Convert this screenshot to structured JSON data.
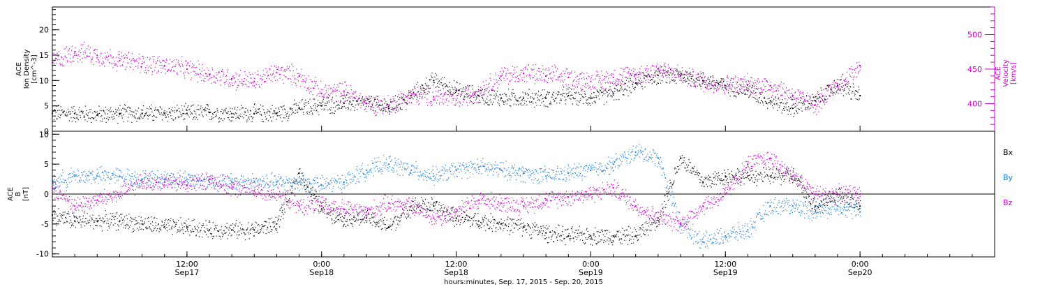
{
  "chart_data": [
    {
      "type": "scatter",
      "x_range": [
        0,
        84
      ],
      "x_tick_hours": [
        12,
        24,
        36,
        48,
        60,
        72
      ],
      "x_tick_labels": [
        {
          "time": "12:00",
          "date": "Sep17"
        },
        {
          "time": "0:00",
          "date": "Sep18"
        },
        {
          "time": "12:00",
          "date": "Sep18"
        },
        {
          "time": "0:00",
          "date": "Sep19"
        },
        {
          "time": "12:00",
          "date": "Sep19"
        },
        {
          "time": "0:00",
          "date": "Sep20"
        }
      ],
      "xlabel": "hours:minutes, Sep. 17, 2015 - Sep. 20, 2015",
      "left_axis": {
        "label_lines": [
          "ACE",
          "Ion Density",
          "[cm^-3]"
        ],
        "range": [
          0,
          24.5
        ],
        "ticks": [
          0,
          5,
          10,
          15,
          20
        ],
        "color": "#000000"
      },
      "right_axis": {
        "label_lines": [
          "ACE",
          "Velocity",
          "[km/s]"
        ],
        "range": [
          360,
          540
        ],
        "ticks": [
          400,
          450,
          500
        ],
        "color": "#cc00cc"
      },
      "series": [
        {
          "axis": "left",
          "color": "#000000",
          "x": [
            0,
            2,
            4,
            6,
            8,
            10,
            12,
            14,
            16,
            18,
            20,
            22,
            24,
            26,
            28,
            30,
            32,
            34,
            36,
            38,
            40,
            42,
            44,
            46,
            48,
            50,
            52,
            54,
            56,
            58,
            60,
            62,
            64,
            66,
            68,
            70,
            72
          ],
          "y": [
            3.5,
            3.5,
            3.2,
            3.5,
            3.5,
            3.5,
            3.5,
            3.7,
            3.5,
            3.5,
            3.5,
            4.5,
            5,
            5.5,
            5.5,
            4.5,
            7,
            10,
            8,
            7,
            6.5,
            6.5,
            6.5,
            7,
            6.5,
            7.5,
            9.5,
            11,
            11,
            10,
            9,
            8,
            6,
            4.5,
            6,
            9,
            7
          ]
        },
        {
          "axis": "right",
          "color": "#cc00cc",
          "x": [
            0,
            2,
            4,
            6,
            8,
            10,
            12,
            14,
            16,
            18,
            20,
            22,
            24,
            26,
            28,
            30,
            32,
            34,
            36,
            38,
            40,
            42,
            44,
            46,
            48,
            50,
            52,
            54,
            56,
            58,
            60,
            62,
            64,
            66,
            68,
            70,
            72
          ],
          "y": [
            460,
            475,
            470,
            462,
            458,
            455,
            450,
            442,
            436,
            432,
            445,
            440,
            415,
            418,
            400,
            398,
            412,
            410,
            405,
            418,
            440,
            444,
            440,
            438,
            432,
            438,
            442,
            450,
            440,
            432,
            426,
            428,
            426,
            412,
            398,
            425,
            455
          ]
        }
      ]
    },
    {
      "type": "scatter",
      "x_range": [
        0,
        84
      ],
      "x_tick_hours": [
        12,
        24,
        36,
        48,
        60,
        72
      ],
      "left_axis": {
        "label_lines": [
          "ACE",
          "B",
          "[nT]"
        ],
        "range": [
          -10.5,
          10.5
        ],
        "ticks": [
          -10,
          -5,
          0,
          5,
          10
        ]
      },
      "zero_line": true,
      "series": [
        {
          "name": "Bx",
          "color": "#000000",
          "x": [
            0,
            2,
            4,
            6,
            8,
            10,
            12,
            14,
            16,
            18,
            20,
            22,
            24,
            26,
            28,
            30,
            32,
            34,
            36,
            38,
            40,
            42,
            44,
            46,
            48,
            50,
            52,
            54,
            56,
            58,
            60,
            62,
            64,
            66,
            68,
            70,
            72
          ],
          "y": [
            -3.5,
            -4.5,
            -4.5,
            -4.5,
            -5,
            -5.5,
            -5.5,
            -6,
            -6,
            -6,
            -5,
            3.5,
            -2.5,
            -4,
            -4,
            -5.5,
            -2,
            -2,
            -4,
            -4.5,
            -5,
            -5.5,
            -6.5,
            -7,
            -7,
            -7,
            -7,
            -4,
            6,
            2,
            3,
            3,
            3,
            3,
            -2,
            0,
            -2
          ]
        },
        {
          "name": "By",
          "color": "#1a7ee0",
          "x": [
            0,
            2,
            4,
            6,
            8,
            10,
            12,
            14,
            16,
            18,
            20,
            22,
            24,
            26,
            28,
            30,
            32,
            34,
            36,
            38,
            40,
            42,
            44,
            46,
            48,
            50,
            52,
            54,
            56,
            58,
            60,
            62,
            64,
            66,
            68,
            70,
            72
          ],
          "y": [
            2,
            3,
            3,
            3,
            2.5,
            2.5,
            2.5,
            2,
            2,
            2,
            2,
            2,
            1.5,
            2,
            4,
            5,
            4,
            3,
            4,
            4.5,
            4,
            3.5,
            3,
            3.5,
            4,
            5,
            7,
            6,
            -5,
            -8,
            -7,
            -6,
            -2,
            -2,
            -3,
            -2,
            -3
          ]
        },
        {
          "name": "Bz",
          "color": "#cc00cc",
          "x": [
            0,
            2,
            4,
            6,
            8,
            10,
            12,
            14,
            16,
            18,
            20,
            22,
            24,
            26,
            28,
            30,
            32,
            34,
            36,
            38,
            40,
            42,
            44,
            46,
            48,
            50,
            52,
            54,
            56,
            58,
            60,
            62,
            64,
            66,
            68,
            70,
            72
          ],
          "y": [
            1,
            -2,
            -1,
            0,
            2,
            2,
            1.5,
            2.5,
            1,
            0.5,
            0,
            -2,
            -2,
            -2.5,
            -3,
            -1.5,
            -2,
            -4,
            -3,
            -1,
            -1.5,
            -2,
            -1,
            -0.5,
            0,
            1,
            -2,
            -4,
            -5,
            -2,
            0,
            5,
            6,
            3,
            0,
            0,
            0
          ]
        }
      ],
      "legend": [
        "Bx",
        "By",
        "Bz"
      ],
      "legend_placement": "right"
    }
  ]
}
